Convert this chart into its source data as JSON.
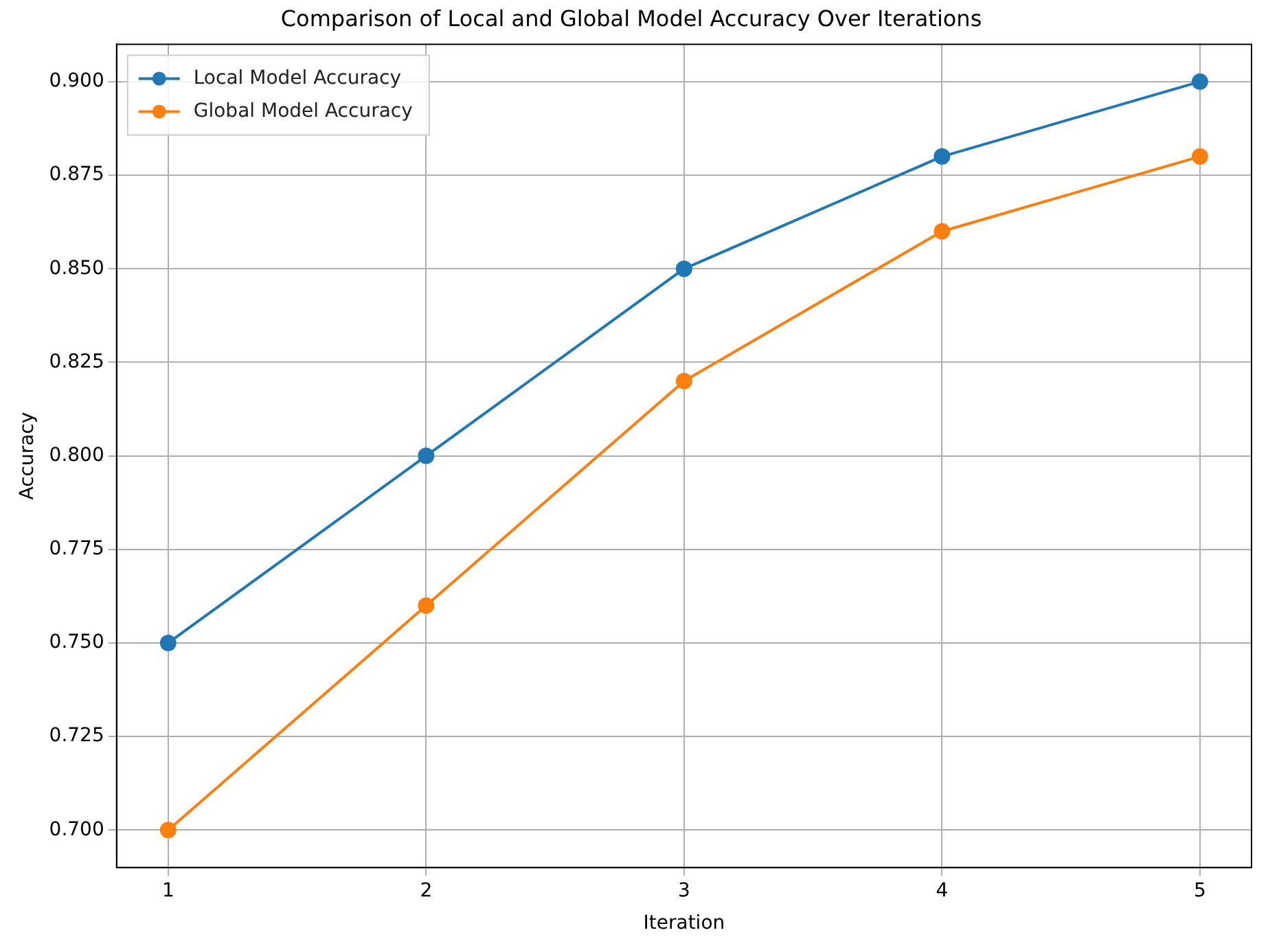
{
  "chart_data": {
    "type": "line",
    "title": "Comparison of Local and Global Model Accuracy Over Iterations",
    "xlabel": "Iteration",
    "ylabel": "Accuracy",
    "x": [
      1,
      2,
      3,
      4,
      5
    ],
    "series": [
      {
        "name": "Local Model Accuracy",
        "color": "#1f77b4",
        "values": [
          0.75,
          0.8,
          0.85,
          0.88,
          0.9
        ]
      },
      {
        "name": "Global Model Accuracy",
        "color": "#ff7f0e",
        "values": [
          0.7,
          0.76,
          0.82,
          0.86,
          0.88
        ]
      }
    ],
    "xlim": [
      0.8,
      5.2
    ],
    "xticks": [
      1,
      2,
      3,
      4,
      5
    ],
    "ylim": [
      0.69,
      0.91
    ],
    "yticks": [
      {
        "value": 0.7,
        "label": "0.700"
      },
      {
        "value": 0.725,
        "label": "0.725"
      },
      {
        "value": 0.75,
        "label": "0.750"
      },
      {
        "value": 0.775,
        "label": "0.775"
      },
      {
        "value": 0.8,
        "label": "0.800"
      },
      {
        "value": 0.825,
        "label": "0.825"
      },
      {
        "value": 0.85,
        "label": "0.850"
      },
      {
        "value": 0.875,
        "label": "0.875"
      },
      {
        "value": 0.9,
        "label": "0.900"
      }
    ],
    "grid": true,
    "legend": "top left",
    "marker": "circle",
    "line_style": "solid"
  }
}
